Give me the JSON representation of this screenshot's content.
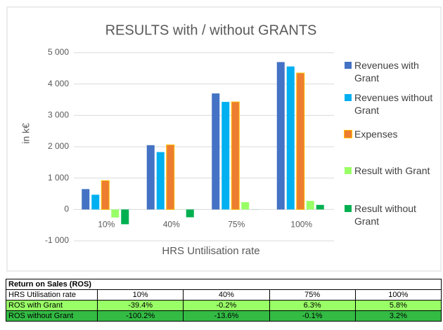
{
  "chart_data": {
    "type": "bar",
    "title": "RESULTS with / without GRANTS",
    "x_label": "HRS Untilisation rate",
    "y_label": "in k€",
    "categories": [
      "10%",
      "40%",
      "75%",
      "100%"
    ],
    "series": [
      {
        "name": "Revenues with Grant",
        "color": "#4472c4",
        "values": [
          650,
          2050,
          3700,
          4700
        ]
      },
      {
        "name": "Revenues without Grant",
        "color": "#00b0f0",
        "values": [
          470,
          1830,
          3430,
          4560
        ]
      },
      {
        "name": "Expenses",
        "color": "#ed7d31",
        "values": [
          920,
          2060,
          3430,
          4350
        ]
      },
      {
        "name": "Result with Grant",
        "color": "#99ff66",
        "values": [
          -256,
          -4,
          233,
          273
        ]
      },
      {
        "name": "Result without Grant",
        "color": "#00b050",
        "values": [
          -471,
          -249,
          -3,
          146
        ]
      }
    ],
    "ylim": [
      -1000,
      5000
    ],
    "yticks": [
      {
        "value": -1000,
        "label": "-1 000"
      },
      0,
      {
        "value": 1000,
        "label": "1 000"
      },
      {
        "value": 2000,
        "label": "2 000"
      },
      {
        "value": 3000,
        "label": "3 000"
      },
      {
        "value": 4000,
        "label": "4 000"
      },
      {
        "value": 5000,
        "label": "5 000"
      }
    ],
    "grid": true,
    "legend": "right"
  },
  "table": {
    "title": "Return on Sales (ROS)",
    "header": [
      "HRS Utilisation rate",
      "10%",
      "40%",
      "75%",
      "100%"
    ],
    "rows": [
      [
        "ROS with Grant",
        "-39.4%",
        "-0.2%",
        "6.3%",
        "5.8%"
      ],
      [
        "ROS without Grant",
        "-100.2%",
        "-13.6%",
        "-0.1%",
        "3.2%"
      ]
    ]
  }
}
